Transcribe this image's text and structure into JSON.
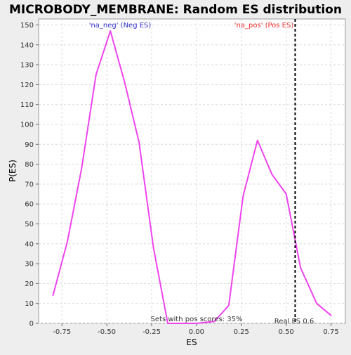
{
  "chart_data": {
    "type": "line",
    "title": "MICROBODY_MEMBRANE: Random ES distribution",
    "xlabel": "ES",
    "ylabel": "P(ES)",
    "xlim": [
      -0.88,
      0.83
    ],
    "ylim": [
      0,
      153
    ],
    "x_ticks": [
      -0.75,
      -0.5,
      -0.25,
      0.0,
      0.25,
      0.5,
      0.75
    ],
    "x_tick_labels": [
      "-0.75",
      "-0.50",
      "-0.25",
      "0.00",
      "0.25",
      "0.50",
      "0.75"
    ],
    "y_ticks": [
      0,
      10,
      20,
      30,
      40,
      50,
      60,
      70,
      80,
      90,
      100,
      110,
      120,
      130,
      140,
      150
    ],
    "y_tick_labels": [
      "0",
      "10",
      "20",
      "30",
      "40",
      "50",
      "60",
      "70",
      "80",
      "90",
      "100",
      "110",
      "120",
      "130",
      "140",
      "150"
    ],
    "grid": true,
    "series": [
      {
        "x": [
          -0.8,
          -0.72,
          -0.64,
          -0.56,
          -0.48,
          -0.4,
          -0.32,
          -0.24,
          -0.16,
          -0.08,
          0.0,
          0.1,
          0.18,
          0.26,
          0.34,
          0.42,
          0.5,
          0.58,
          0.67,
          0.75
        ],
        "values": [
          14,
          41,
          78,
          125,
          147,
          121,
          91,
          38,
          0,
          0,
          0,
          1,
          9,
          64,
          92,
          75,
          65,
          28,
          10,
          4
        ],
        "color": "#ee44ee"
      }
    ],
    "annotations": [
      {
        "text": "'na_neg' (Neg ES)",
        "color": "#3333cc"
      },
      {
        "text": "'na_pos' (Pos ES)",
        "color": "#ee3333"
      },
      {
        "text": "Sets with pos scores: 35%",
        "color": "#333333"
      },
      {
        "text": "Real ES 0.6",
        "color": "#333333"
      }
    ],
    "real_es_line": {
      "x": 0.55,
      "label": "Real ES 0.6"
    }
  }
}
